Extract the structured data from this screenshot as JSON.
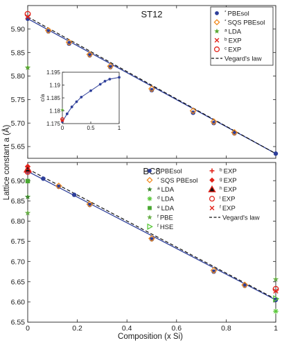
{
  "chart_data": [
    {
      "type": "scatter",
      "panel_id": "st12",
      "title": "ST12",
      "xlim": [
        0,
        1
      ],
      "ylim": [
        5.625,
        5.95
      ],
      "yticks": [
        5.65,
        5.7,
        5.75,
        5.8,
        5.85,
        5.9
      ],
      "xticks": [
        0,
        0.2,
        0.4,
        0.6,
        0.8,
        1
      ],
      "legend_placement": "top-right",
      "series": [
        {
          "name": "PBEsol",
          "sup": "*",
          "marker": "circle-filled",
          "color": "#2e3f9a",
          "x": [
            0,
            0.0833,
            0.1667,
            0.25,
            0.3333,
            0.5,
            0.6667,
            0.75,
            0.8333,
            1
          ],
          "y": [
            5.922,
            5.895,
            5.869,
            5.844,
            5.819,
            5.77,
            5.722,
            5.7,
            5.678,
            5.635
          ]
        },
        {
          "name": "SQS PBEsol",
          "sup": "*",
          "marker": "diamond-open",
          "color": "#f28a1e",
          "x": [
            0.0833,
            0.1667,
            0.25,
            0.3333,
            0.5,
            0.6667,
            0.75,
            0.8333
          ],
          "y": [
            5.897,
            5.872,
            5.846,
            5.821,
            5.773,
            5.726,
            5.703,
            5.68
          ]
        },
        {
          "name": "LDA",
          "sup": "a",
          "marker": "star",
          "color": "#5aa832",
          "x": [
            0
          ],
          "y": [
            5.818
          ]
        },
        {
          "name": "EXP",
          "sup": "b",
          "marker": "cross",
          "color": "#e2231a",
          "x": [
            0
          ],
          "y": [
            5.926
          ]
        },
        {
          "name": "EXP",
          "sup": "c",
          "marker": "circle-open",
          "color": "#e2231a",
          "x": [
            0
          ],
          "y": [
            5.932
          ]
        },
        {
          "name": "Vegard's law",
          "sup": "",
          "marker": "dashed-line",
          "color": "#111111",
          "x": [
            0,
            1
          ],
          "y": [
            5.926,
            5.635
          ]
        }
      ],
      "fit_line": {
        "x": [
          0,
          1
        ],
        "y": [
          5.922,
          5.635
        ],
        "color": "#2e3f9a"
      },
      "inset": {
        "ylabel": "c/a",
        "xlim": [
          0,
          1
        ],
        "ylim": [
          1.175,
          1.195
        ],
        "xticks": [
          0,
          0.5,
          1
        ],
        "xticklabels": [
          "0",
          "0.5",
          "1"
        ],
        "yticks": [
          1.175,
          1.18,
          1.185,
          1.19,
          1.195
        ],
        "yticklabels": [
          "1.175",
          "1.18",
          "1.185",
          "1.19",
          "1.195"
        ],
        "points": {
          "x": [
            0,
            0.0833,
            0.1667,
            0.25,
            0.3333,
            0.5,
            0.6667,
            0.75,
            0.8333,
            1
          ],
          "y": [
            1.1757,
            1.1788,
            1.1815,
            1.1835,
            1.1853,
            1.1878,
            1.1903,
            1.1915,
            1.1923,
            1.193
          ]
        },
        "lda_point": {
          "x": [
            0
          ],
          "y": [
            1.1803
          ]
        },
        "exp_points": {
          "x": [
            0,
            0
          ],
          "y": [
            1.1762,
            1.1767
          ]
        }
      }
    },
    {
      "type": "scatter",
      "panel_id": "bc8",
      "title": "BC8",
      "xlim": [
        0,
        1
      ],
      "ylim": [
        6.55,
        6.945
      ],
      "yticks": [
        6.55,
        6.6,
        6.65,
        6.7,
        6.75,
        6.8,
        6.85,
        6.9
      ],
      "xticks": [
        0,
        0.2,
        0.4,
        0.6,
        0.8,
        1
      ],
      "xticklabels": [
        "0",
        "0.2",
        "0.4",
        "0.6",
        "0.8",
        "1"
      ],
      "legend_placement": "top-right",
      "series": [
        {
          "name": "PBEsol",
          "sup": "*",
          "marker": "circle-filled",
          "color": "#2e3f9a",
          "x": [
            0,
            0.0625,
            0.125,
            0.1875,
            0.25,
            0.5,
            0.75,
            0.875,
            1
          ],
          "y": [
            6.923,
            6.905,
            6.885,
            6.865,
            6.84,
            6.755,
            6.675,
            6.64,
            6.605
          ]
        },
        {
          "name": "SQS PBEsol",
          "sup": "*",
          "marker": "diamond-open",
          "color": "#f28a1e",
          "x": [
            0.125,
            0.25,
            0.5,
            0.75,
            0.875
          ],
          "y": [
            6.887,
            6.842,
            6.757,
            6.678,
            6.642
          ]
        },
        {
          "name": "LDA",
          "sup": "a",
          "marker": "star-dark",
          "color": "#3f8a2e",
          "x": [
            0
          ],
          "y": [
            6.86
          ]
        },
        {
          "name": "LDA",
          "sup": "d",
          "marker": "asterisk",
          "color": "#5ac83a",
          "x": [
            1
          ],
          "y": [
            6.577
          ]
        },
        {
          "name": "LDA",
          "sup": "e",
          "marker": "square-filled",
          "color": "#4aa832",
          "x": [
            0
          ],
          "y": [
            6.899
          ]
        },
        {
          "name": "PBE",
          "sup": "f",
          "marker": "star",
          "color": "#6ab04a",
          "x": [
            0,
            1
          ],
          "y": [
            6.82,
            6.656
          ]
        },
        {
          "name": "HSE",
          "sup": "f",
          "marker": "triangle-open",
          "color": "#5ac83a",
          "x": [
            1
          ],
          "y": [
            6.608
          ]
        },
        {
          "name": "EXP",
          "sup": "b",
          "marker": "plus",
          "color": "#e2231a",
          "x": [
            0
          ],
          "y": [
            6.925
          ]
        },
        {
          "name": "EXP",
          "sup": "g",
          "marker": "diamond-filled",
          "color": "#e2231a",
          "x": [
            0
          ],
          "y": [
            6.935
          ]
        },
        {
          "name": "EXP",
          "sup": "h",
          "marker": "triangle-filled",
          "color": "#e2231a",
          "x": [
            0
          ],
          "y": [
            6.928
          ]
        },
        {
          "name": "EXP",
          "sup": "i",
          "marker": "circle-open",
          "color": "#e2231a",
          "x": [
            0,
            1
          ],
          "y": [
            6.922,
            6.632
          ]
        },
        {
          "name": "EXP",
          "sup": "f",
          "marker": "cross",
          "color": "#e2231a",
          "x": [
            1
          ],
          "y": [
            6.627
          ]
        },
        {
          "name": "Vegard's law",
          "sup": "",
          "marker": "dashed-line",
          "color": "#111111",
          "x": [
            0,
            1
          ],
          "y": [
            6.929,
            6.607
          ]
        }
      ],
      "fit_line": {
        "x": [
          0,
          1
        ],
        "y": [
          6.923,
          6.605
        ],
        "color": "#2e3f9a"
      }
    }
  ],
  "shared": {
    "ylabel": "Lattice constant a (Å)",
    "xlabel": "Composition (x Si)"
  }
}
